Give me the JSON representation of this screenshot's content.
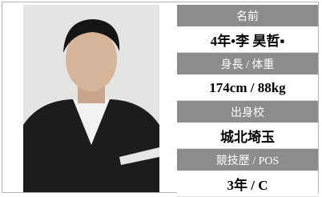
{
  "profile": {
    "rows": [
      {
        "label": "名前",
        "value": "4年•李 昊哲▪"
      },
      {
        "label": "身長 / 体重",
        "value": "174cm / 88kg"
      },
      {
        "label": "出身校",
        "value": "城北埼玉"
      },
      {
        "label": "競技歴 / POS",
        "value": "3年 / C"
      }
    ]
  }
}
